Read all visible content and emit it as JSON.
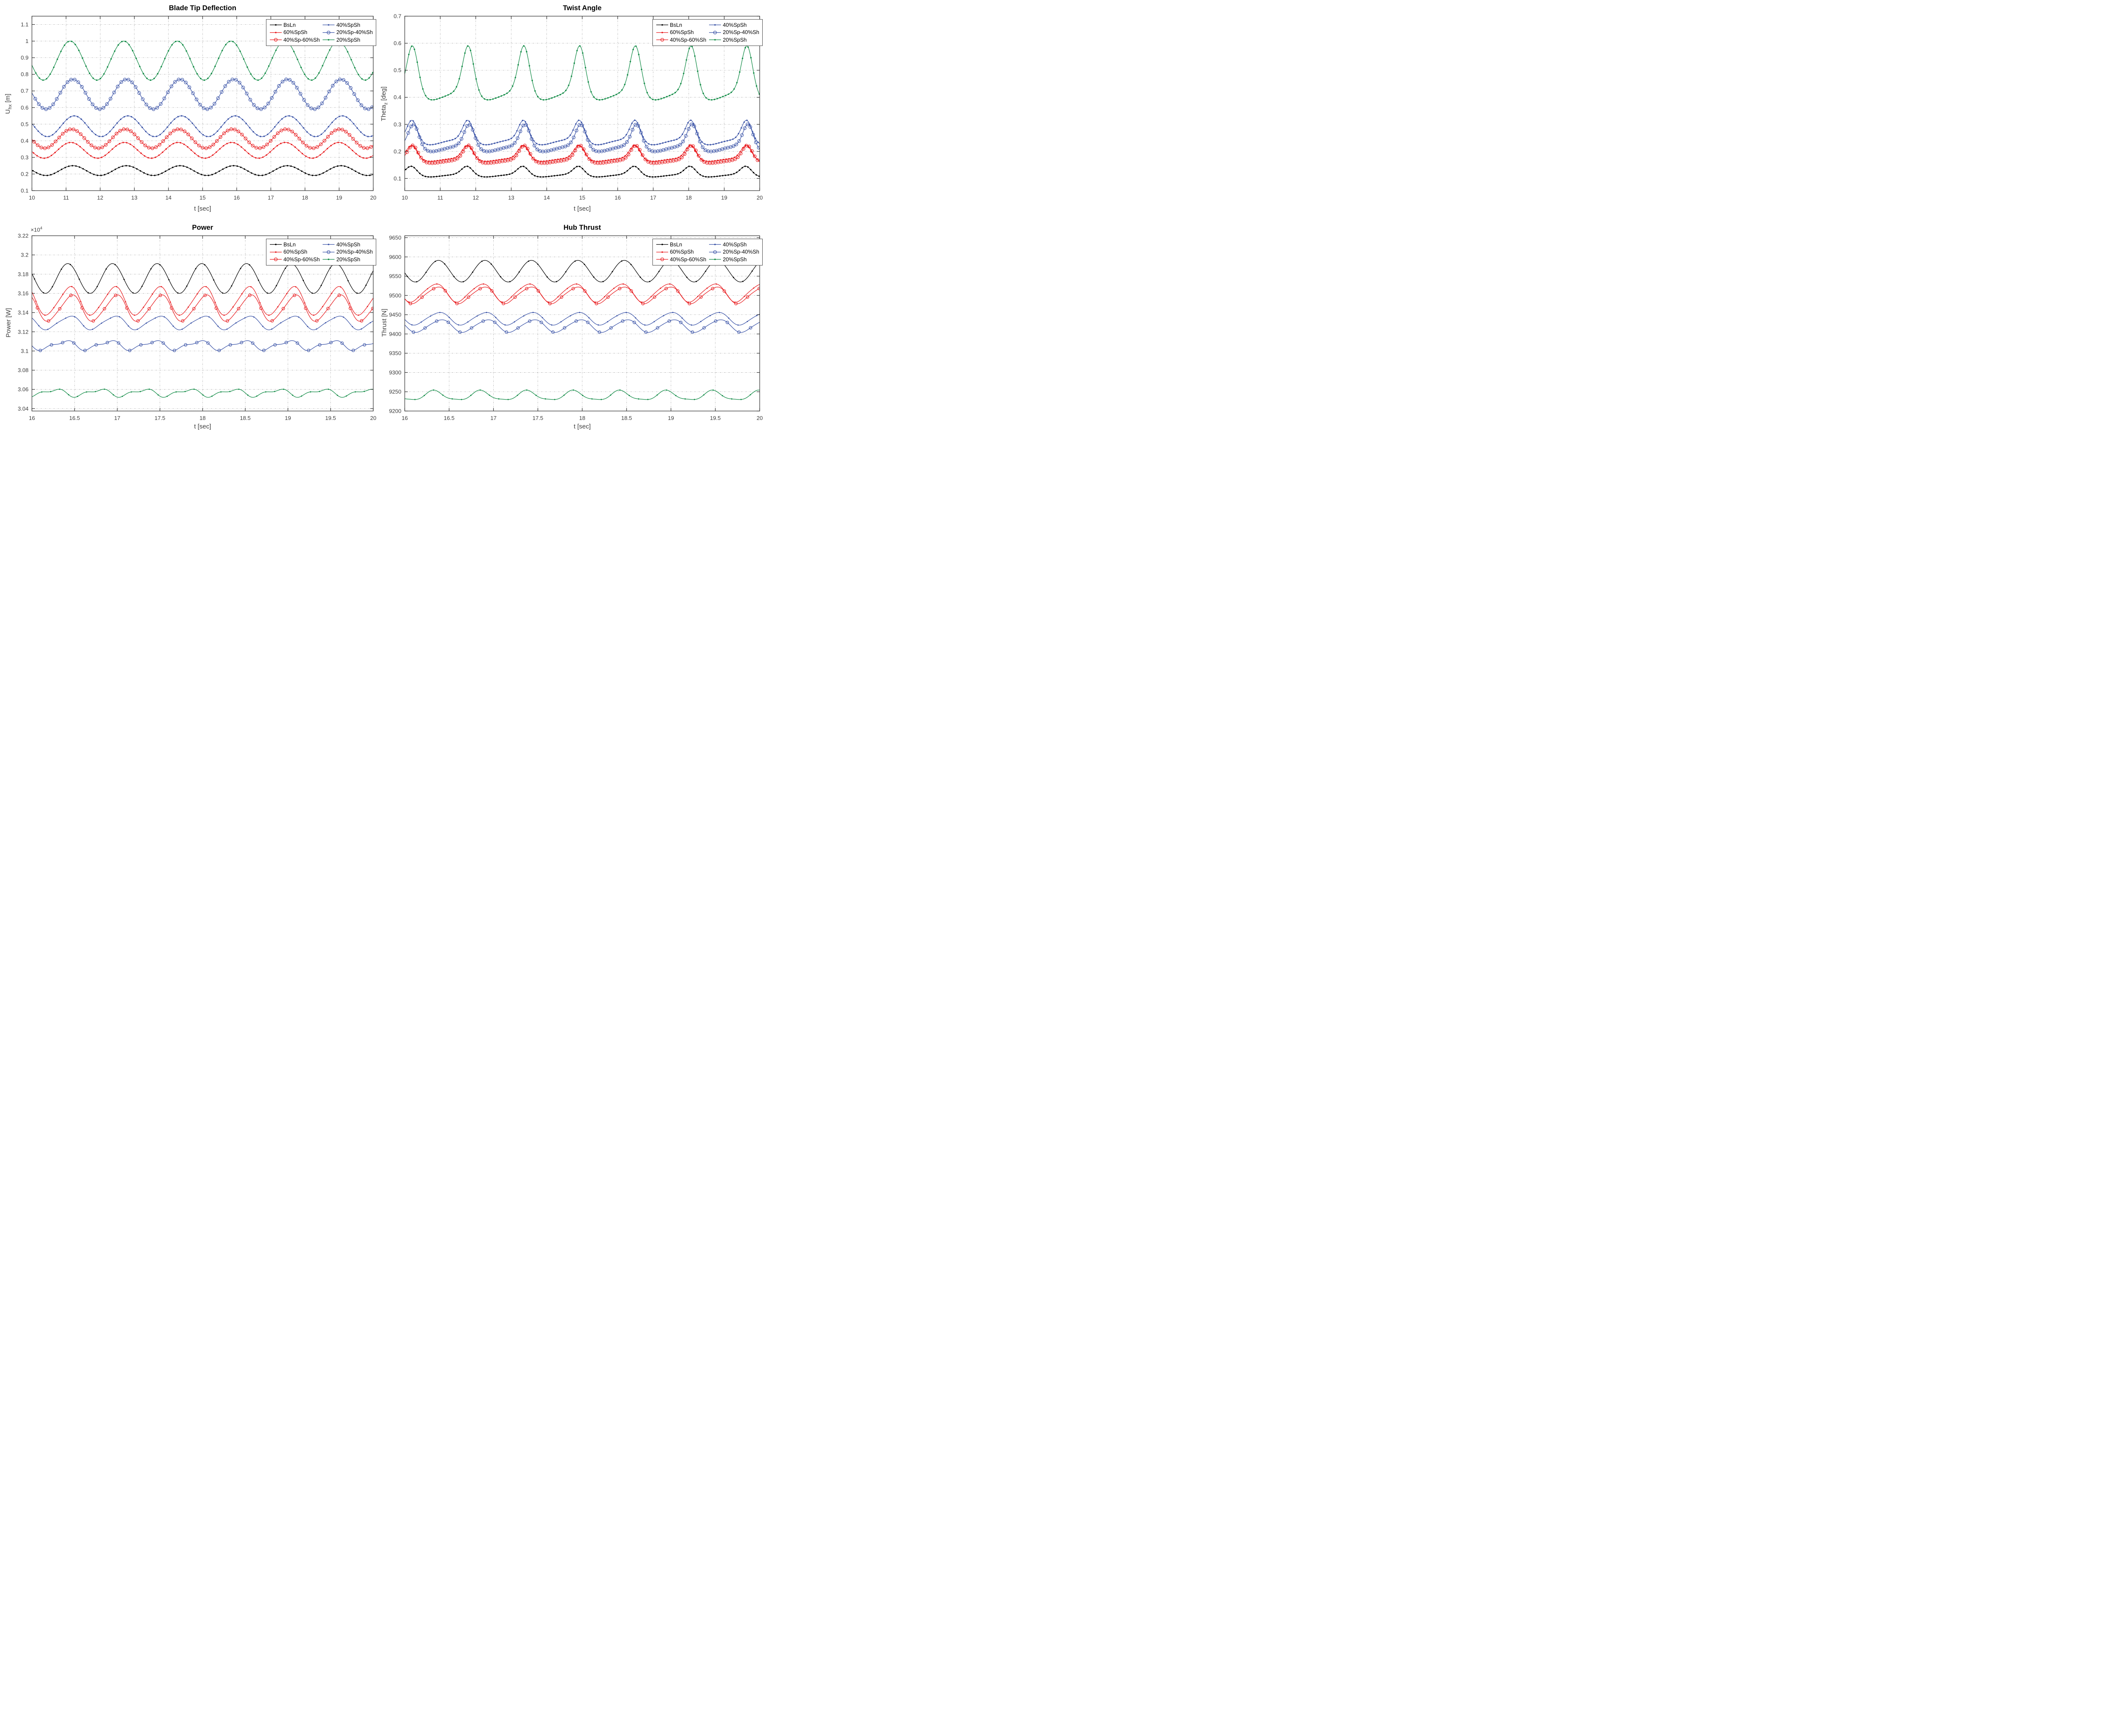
{
  "legend": {
    "entries": [
      {
        "label": "BsLn",
        "color": "#000000",
        "marker": "dot"
      },
      {
        "label": "60%SpSh",
        "color": "#e81b1e",
        "marker": "dot"
      },
      {
        "label": "40%Sp-60%Sh",
        "color": "#e81b1e",
        "marker": "circle"
      },
      {
        "label": "40%SpSh",
        "color": "#3a53a7",
        "marker": "dot"
      },
      {
        "label": "20%Sp-40%Sh",
        "color": "#3a53a7",
        "marker": "circle"
      },
      {
        "label": "20%SpSh",
        "color": "#0f8a44",
        "marker": "dot"
      }
    ]
  },
  "style": {
    "grid_color": "#b5b5b5",
    "axis_color": "#2b2b2b",
    "tick_label_color": "#3d3d3d"
  },
  "chart_data": [
    {
      "id": "blade-tip-deflection",
      "type": "line",
      "title": "Blade Tip Deflection",
      "xlabel": "t [sec]",
      "ylabel": {
        "pre": "U",
        "sub": "hx",
        "post": " [m]"
      },
      "xlim": [
        10,
        20
      ],
      "ylim": [
        0.1,
        1.15
      ],
      "grid": true,
      "legend_position": "top-right",
      "xtick_vals": [
        10,
        11,
        12,
        13,
        14,
        15,
        16,
        17,
        18,
        19,
        20
      ],
      "xtick_labels": [
        "10",
        "11",
        "12",
        "13",
        "14",
        "15",
        "16",
        "17",
        "18",
        "19",
        "20"
      ],
      "ytick_vals": [
        0.1,
        0.2,
        0.3,
        0.4,
        0.5,
        0.6,
        0.7,
        0.8,
        0.9,
        1.0,
        1.1
      ],
      "ytick_labels": [
        "0.1",
        "0.2",
        "0.3",
        "0.4",
        "0.5",
        "0.6",
        "0.7",
        "0.8",
        "0.9",
        "1",
        "1.1"
      ],
      "series": [
        {
          "name": "BsLn",
          "color": "#000000",
          "marker": "dot",
          "marker_dt": 0.105,
          "model": {
            "type": "harmonic",
            "period": 1.5708,
            "mean": 0.2205,
            "components": [
              {
                "k": 1,
                "amp": 0.0295,
                "t_max": 11.2
              }
            ]
          },
          "approx_range": {
            "min": 0.19,
            "max": 0.25
          }
        },
        {
          "name": "60%SpSh",
          "color": "#e81b1e",
          "marker": "dot",
          "marker_dt": 0.105,
          "model": {
            "type": "harmonic",
            "period": 1.5708,
            "mean": 0.3425,
            "components": [
              {
                "k": 1,
                "amp": 0.0475,
                "t_max": 11.14
              }
            ]
          },
          "approx_range": {
            "min": 0.295,
            "max": 0.39
          }
        },
        {
          "name": "40%Sp-60%Sh",
          "color": "#e81b1e",
          "marker": "circle",
          "marker_dt": 0.105,
          "model": {
            "type": "harmonic",
            "period": 1.5708,
            "mean": 0.4125,
            "components": [
              {
                "k": 1,
                "amp": 0.0575,
                "t_max": 11.16
              }
            ]
          },
          "approx_range": {
            "min": 0.355,
            "max": 0.47
          }
        },
        {
          "name": "40%SpSh",
          "color": "#3a53a7",
          "marker": "dot",
          "marker_dt": 0.105,
          "model": {
            "type": "harmonic",
            "period": 1.5708,
            "mean": 0.4875,
            "components": [
              {
                "k": 1,
                "amp": 0.0625,
                "t_max": 11.24
              }
            ]
          },
          "approx_range": {
            "min": 0.425,
            "max": 0.55
          }
        },
        {
          "name": "20%Sp-40%Sh",
          "color": "#3a53a7",
          "marker": "circle",
          "marker_dt": 0.105,
          "model": {
            "type": "harmonic",
            "period": 1.5708,
            "mean": 0.68,
            "components": [
              {
                "k": 1,
                "amp": 0.09,
                "t_max": 11.2
              }
            ]
          },
          "approx_range": {
            "min": 0.59,
            "max": 0.77
          }
        },
        {
          "name": "20%SpSh",
          "color": "#0f8a44",
          "marker": "dot",
          "marker_dt": 0.105,
          "model": {
            "type": "harmonic",
            "period": 1.5708,
            "mean": 0.8825,
            "components": [
              {
                "k": 1,
                "amp": 0.1175,
                "t_max": 11.12
              }
            ]
          },
          "approx_range": {
            "min": 0.765,
            "max": 1.0
          }
        }
      ]
    },
    {
      "id": "twist-angle",
      "type": "line",
      "title": "Twist Angle",
      "xlabel": "t [sec]",
      "ylabel": {
        "pre": "Theta",
        "sub": "z",
        "post": " [deg]"
      },
      "xlim": [
        10,
        20
      ],
      "ylim": [
        0.055,
        0.7
      ],
      "grid": true,
      "legend_position": "top-right",
      "xtick_vals": [
        10,
        11,
        12,
        13,
        14,
        15,
        16,
        17,
        18,
        19,
        20
      ],
      "xtick_labels": [
        "10",
        "11",
        "12",
        "13",
        "14",
        "15",
        "16",
        "17",
        "18",
        "19",
        "20"
      ],
      "ytick_vals": [
        0.1,
        0.2,
        0.3,
        0.4,
        0.5,
        0.6,
        0.7
      ],
      "ytick_labels": [
        "0.1",
        "0.2",
        "0.3",
        "0.4",
        "0.5",
        "0.6",
        "0.7"
      ],
      "series": [
        {
          "name": "BsLn",
          "color": "#000000",
          "marker": "dot",
          "marker_dt": 0.079,
          "model": {
            "type": "pulse",
            "period": 1.5708,
            "base": 0.108,
            "amp": 0.037,
            "kappa": 2.4,
            "ramp": 0.004,
            "center": 10.19
          },
          "approx_range": {
            "min": 0.104,
            "max": 0.145
          }
        },
        {
          "name": "60%SpSh",
          "color": "#e81b1e",
          "marker": "dot",
          "marker_dt": 0.079,
          "model": {
            "type": "pulse",
            "period": 1.5708,
            "base": 0.167,
            "amp": 0.055,
            "kappa": 2.8,
            "ramp": 0.005,
            "center": 10.2
          },
          "approx_range": {
            "min": 0.162,
            "max": 0.222
          }
        },
        {
          "name": "40%Sp-60%Sh",
          "color": "#e81b1e",
          "marker": "circle",
          "marker_dt": 0.079,
          "model": {
            "type": "pulse",
            "period": 1.5708,
            "base": 0.16,
            "amp": 0.062,
            "kappa": 2.8,
            "ramp": 0.005,
            "center": 10.23
          },
          "approx_range": {
            "min": 0.155,
            "max": 0.222
          }
        },
        {
          "name": "40%SpSh",
          "color": "#3a53a7",
          "marker": "dot",
          "marker_dt": 0.079,
          "model": {
            "type": "pulse",
            "period": 1.5708,
            "base": 0.231,
            "amp": 0.084,
            "kappa": 2.8,
            "ramp": 0.009,
            "center": 10.21
          },
          "approx_range": {
            "min": 0.222,
            "max": 0.315
          }
        },
        {
          "name": "20%Sp-40%Sh",
          "color": "#3a53a7",
          "marker": "circle",
          "marker_dt": 0.079,
          "model": {
            "type": "pulse",
            "period": 1.5708,
            "base": 0.206,
            "amp": 0.094,
            "kappa": 2.8,
            "ramp": 0.009,
            "center": 10.25
          },
          "approx_range": {
            "min": 0.197,
            "max": 0.3
          }
        },
        {
          "name": "20%SpSh",
          "color": "#0f8a44",
          "marker": "dot",
          "marker_dt": 0.079,
          "model": {
            "type": "pulse",
            "period": 1.5708,
            "base": 0.396,
            "amp": 0.194,
            "kappa": 2.4,
            "ramp": 0.012,
            "center": 10.22
          },
          "approx_range": {
            "min": 0.392,
            "max": 0.59
          }
        }
      ]
    },
    {
      "id": "power",
      "type": "line",
      "title": "Power",
      "xlabel": "t [sec]",
      "ylabel": {
        "pre": "Power [W]",
        "sub": "",
        "post": ""
      },
      "exponent": {
        "base": "×10",
        "power": "4"
      },
      "xlim": [
        16,
        20
      ],
      "ylim": [
        3.0375,
        3.22
      ],
      "grid": true,
      "legend_position": "top-right",
      "xtick_vals": [
        16,
        16.5,
        17,
        17.5,
        18,
        18.5,
        19,
        19.5,
        20
      ],
      "xtick_labels": [
        "16",
        "16.5",
        "17",
        "17.5",
        "18",
        "18.5",
        "19",
        "19.5",
        "20"
      ],
      "ytick_vals": [
        3.04,
        3.06,
        3.08,
        3.1,
        3.12,
        3.14,
        3.16,
        3.18,
        3.2,
        3.22
      ],
      "ytick_labels": [
        "3.04",
        "3.06",
        "3.08",
        "3.1",
        "3.12",
        "3.14",
        "3.16",
        "3.18",
        "3.2",
        "3.22"
      ],
      "series": [
        {
          "name": "BsLn",
          "color": "#000000",
          "marker": "dot",
          "marker_dt": 0.105,
          "model": {
            "type": "harmonic",
            "period": 0.5236,
            "mean": 3.1755,
            "components": [
              {
                "k": 1,
                "amp": 0.0155,
                "t_max": 16.42
              }
            ]
          },
          "approx_range": {
            "min": 3.16,
            "max": 3.191
          }
        },
        {
          "name": "60%SpSh",
          "color": "#e81b1e",
          "marker": "dot",
          "marker_dt": 0.105,
          "model": {
            "type": "harmonic",
            "period": 0.5236,
            "mean": 3.152,
            "components": [
              {
                "k": 1,
                "amp": 0.0145,
                "t_max": 16.44
              },
              {
                "k": 2,
                "amp": 0.0018,
                "t_max": 16.5
              }
            ]
          },
          "approx_range": {
            "min": 3.137,
            "max": 3.167
          }
        },
        {
          "name": "40%Sp-60%Sh",
          "color": "#e81b1e",
          "marker": "circle",
          "marker_dt": 0.131,
          "model": {
            "type": "harmonic",
            "period": 0.5236,
            "mean": 3.1445,
            "components": [
              {
                "k": 1,
                "amp": 0.0133,
                "t_max": 16.46
              },
              {
                "k": 2,
                "amp": 0.0018,
                "t_max": 16.52
              }
            ]
          },
          "approx_range": {
            "min": 3.131,
            "max": 3.159
          }
        },
        {
          "name": "40%SpSh",
          "color": "#3a53a7",
          "marker": "dot",
          "marker_dt": 0.105,
          "model": {
            "type": "harmonic",
            "period": 0.5236,
            "mean": 3.1295,
            "components": [
              {
                "k": 1,
                "amp": 0.0068,
                "t_max": 16.44
              },
              {
                "k": 2,
                "amp": 0.0012,
                "t_max": 16.52
              }
            ]
          },
          "approx_range": {
            "min": 3.122,
            "max": 3.137
          }
        },
        {
          "name": "20%Sp-40%Sh",
          "color": "#3a53a7",
          "marker": "circle",
          "marker_dt": 0.131,
          "model": {
            "type": "harmonic",
            "period": 0.5236,
            "mean": 3.106,
            "components": [
              {
                "k": 1,
                "amp": 0.0042,
                "t_max": 16.38
              },
              {
                "k": 2,
                "amp": -0.0018,
                "t_max": 16.33
              }
            ]
          },
          "approx_range": {
            "min": 3.1,
            "max": 3.112
          }
        },
        {
          "name": "20%SpSh",
          "color": "#0f8a44",
          "marker": "dot",
          "marker_dt": 0.105,
          "model": {
            "type": "harmonic",
            "period": 0.5236,
            "mean": 3.0565,
            "components": [
              {
                "k": 1,
                "amp": 0.0033,
                "t_max": 16.26
              },
              {
                "k": 2,
                "amp": -0.0017,
                "t_max": 16.22
              }
            ]
          },
          "approx_range": {
            "min": 3.052,
            "max": 3.06
          }
        }
      ]
    },
    {
      "id": "hub-thrust",
      "type": "line",
      "title": "Hub Thrust",
      "xlabel": "t [sec]",
      "ylabel": {
        "pre": "Thrust [N]",
        "sub": "",
        "post": ""
      },
      "xlim": [
        16,
        20
      ],
      "ylim": [
        9200,
        9655
      ],
      "grid": true,
      "legend_position": "top-right",
      "xtick_vals": [
        16,
        16.5,
        17,
        17.5,
        18,
        18.5,
        19,
        19.5,
        20
      ],
      "xtick_labels": [
        "16",
        "16.5",
        "17",
        "17.5",
        "18",
        "18.5",
        "19",
        "19.5",
        "20"
      ],
      "ytick_vals": [
        9200,
        9250,
        9300,
        9350,
        9400,
        9450,
        9500,
        9550,
        9600,
        9650
      ],
      "ytick_labels": [
        "9200",
        "9250",
        "9300",
        "9350",
        "9400",
        "9450",
        "9500",
        "9550",
        "9600",
        "9650"
      ],
      "series": [
        {
          "name": "BsLn",
          "color": "#000000",
          "marker": "dot",
          "marker_dt": 0.105,
          "model": {
            "type": "harmonic",
            "period": 0.5236,
            "mean": 9563,
            "components": [
              {
                "k": 1,
                "amp": 28,
                "t_max": 16.38
              }
            ]
          },
          "approx_range": {
            "min": 9535,
            "max": 9591
          }
        },
        {
          "name": "60%SpSh",
          "color": "#e81b1e",
          "marker": "dot",
          "marker_dt": 0.105,
          "model": {
            "type": "harmonic",
            "period": 0.5236,
            "mean": 9507,
            "components": [
              {
                "k": 1,
                "amp": 23,
                "t_max": 16.34
              },
              {
                "k": 2,
                "amp": 3,
                "t_max": 16.42
              }
            ]
          },
          "approx_range": {
            "min": 9483,
            "max": 9532
          }
        },
        {
          "name": "40%Sp-60%Sh",
          "color": "#e81b1e",
          "marker": "circle",
          "marker_dt": 0.131,
          "model": {
            "type": "harmonic",
            "period": 0.5236,
            "mean": 9501,
            "components": [
              {
                "k": 1,
                "amp": 21,
                "t_max": 16.36
              },
              {
                "k": 2,
                "amp": 3,
                "t_max": 16.44
              }
            ]
          },
          "approx_range": {
            "min": 9479,
            "max": 9524
          }
        },
        {
          "name": "40%SpSh",
          "color": "#3a53a7",
          "marker": "dot",
          "marker_dt": 0.105,
          "model": {
            "type": "harmonic",
            "period": 0.5236,
            "mean": 9440,
            "components": [
              {
                "k": 1,
                "amp": 16,
                "t_max": 16.38
              },
              {
                "k": 2,
                "amp": 2,
                "t_max": 16.46
              }
            ]
          },
          "approx_range": {
            "min": 9423,
            "max": 9457
          }
        },
        {
          "name": "20%Sp-40%Sh",
          "color": "#3a53a7",
          "marker": "circle",
          "marker_dt": 0.131,
          "model": {
            "type": "harmonic",
            "period": 0.5236,
            "mean": 9421,
            "components": [
              {
                "k": 1,
                "amp": 16,
                "t_max": 16.4
              },
              {
                "k": 2,
                "amp": 2,
                "t_max": 16.48
              }
            ]
          },
          "approx_range": {
            "min": 9404,
            "max": 9438
          }
        },
        {
          "name": "20%SpSh",
          "color": "#0f8a44",
          "marker": "dot",
          "marker_dt": 0.105,
          "model": {
            "type": "harmonic",
            "period": 0.5236,
            "mean": 9239.5,
            "components": [
              {
                "k": 1,
                "amp": 12,
                "t_max": 16.33
              },
              {
                "k": 2,
                "amp": -3,
                "t_max": 16.45
              }
            ]
          },
          "approx_range": {
            "min": 9227,
            "max": 9252
          }
        }
      ]
    }
  ]
}
